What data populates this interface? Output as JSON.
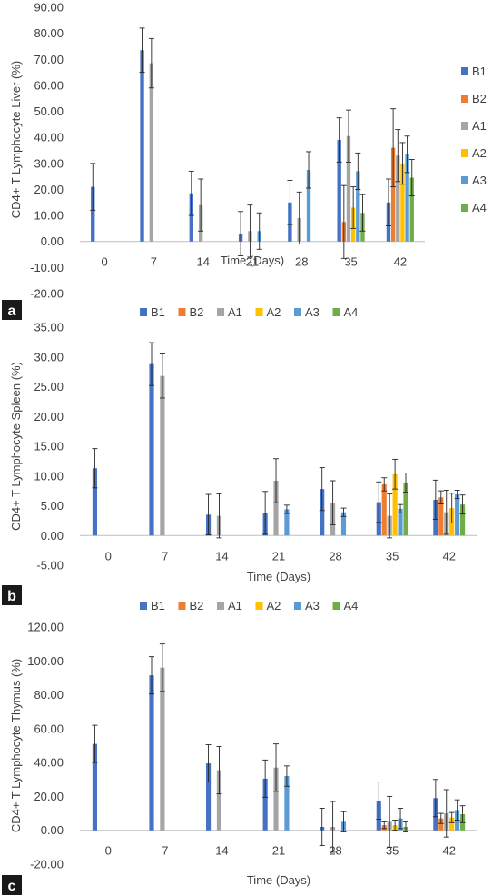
{
  "colors": {
    "B1": "#4472C4",
    "B2": "#ED7D31",
    "A1": "#A5A5A5",
    "A2": "#FFC000",
    "A3": "#5B9BD5",
    "A4": "#70AD47"
  },
  "chart_data": [
    {
      "type": "bar",
      "panel_label": "a",
      "title": "",
      "xlabel": "Time (Days)",
      "ylabel": "CD4+ T Lymphocyte Liver (%)",
      "ylim": [
        -20,
        90
      ],
      "ytick_step": 10,
      "ytick_labels": [
        "-20.00",
        "-10.00",
        "0.00",
        "10.00",
        "20.00",
        "30.00",
        "40.00",
        "50.00",
        "60.00",
        "70.00",
        "80.00",
        "90.00"
      ],
      "categories": [
        "0",
        "7",
        "14",
        "21",
        "28",
        "35",
        "42"
      ],
      "legend_position": "right",
      "series": [
        {
          "name": "B1",
          "values": [
            21,
            73.5,
            18.5,
            3,
            15,
            39,
            15
          ],
          "errors": [
            9,
            8.5,
            8.5,
            8.5,
            8.5,
            8.5,
            9
          ]
        },
        {
          "name": "B2",
          "values": [
            null,
            null,
            null,
            null,
            null,
            7.5,
            36
          ],
          "errors": [
            0,
            0,
            0,
            0,
            0,
            14,
            15
          ]
        },
        {
          "name": "A1",
          "values": [
            null,
            68.5,
            14,
            4,
            9,
            40.5,
            33
          ],
          "errors": [
            0,
            9.5,
            10,
            10,
            10,
            10,
            10
          ]
        },
        {
          "name": "A2",
          "values": [
            null,
            null,
            null,
            null,
            null,
            13,
            30
          ],
          "errors": [
            0,
            0,
            0,
            0,
            0,
            8,
            8
          ]
        },
        {
          "name": "A3",
          "values": [
            null,
            null,
            null,
            4,
            27.5,
            27,
            33.5
          ],
          "errors": [
            0,
            0,
            0,
            7,
            7,
            7,
            7
          ]
        },
        {
          "name": "A4",
          "values": [
            null,
            null,
            null,
            null,
            null,
            11,
            24.5
          ],
          "errors": [
            0,
            0,
            0,
            0,
            0,
            7,
            7
          ]
        }
      ]
    },
    {
      "type": "bar",
      "panel_label": "b",
      "title": "",
      "xlabel": "Time (Days)",
      "ylabel": "CD4+ T Lymphocyte Spleen (%)",
      "ylim": [
        -5,
        35
      ],
      "ytick_step": 5,
      "ytick_labels": [
        "-5.00",
        "0.00",
        "5.00",
        "10.00",
        "15.00",
        "20.00",
        "25.00",
        "30.00",
        "35.00"
      ],
      "categories": [
        "0",
        "7",
        "14",
        "21",
        "28",
        "35",
        "42"
      ],
      "legend_position": "top",
      "series": [
        {
          "name": "B1",
          "values": [
            11.3,
            28.8,
            3.5,
            3.8,
            7.8,
            5.6,
            6.0
          ],
          "errors": [
            3.3,
            3.6,
            3.4,
            3.6,
            3.6,
            3.4,
            3.3
          ]
        },
        {
          "name": "B2",
          "values": [
            null,
            null,
            null,
            null,
            null,
            8.6,
            6.4
          ],
          "errors": [
            0,
            0,
            0,
            0,
            0,
            1.1,
            1.1
          ]
        },
        {
          "name": "A1",
          "values": [
            null,
            26.8,
            3.3,
            9.2,
            5.5,
            3.3,
            3.9
          ],
          "errors": [
            0,
            3.7,
            3.7,
            3.7,
            3.7,
            3.7,
            3.7
          ]
        },
        {
          "name": "A2",
          "values": [
            null,
            null,
            null,
            null,
            null,
            10.3,
            4.6
          ],
          "errors": [
            0,
            0,
            0,
            0,
            0,
            2.5,
            2.5
          ]
        },
        {
          "name": "A3",
          "values": [
            null,
            null,
            null,
            4.4,
            3.9,
            4.5,
            6.9
          ],
          "errors": [
            0,
            0,
            0,
            0.7,
            0.7,
            0.7,
            0.7
          ]
        },
        {
          "name": "A4",
          "values": [
            null,
            null,
            null,
            null,
            null,
            8.9,
            5.2
          ],
          "errors": [
            0,
            0,
            0,
            0,
            0,
            1.6,
            1.6
          ]
        }
      ]
    },
    {
      "type": "bar",
      "panel_label": "c",
      "title": "",
      "xlabel": "Time (Days)",
      "ylabel": "CD4+ T Lymphocyte Thymus (%)",
      "ylim": [
        -20,
        120
      ],
      "ytick_step": 20,
      "ytick_labels": [
        "-20.00",
        "0.00",
        "20.00",
        "40.00",
        "60.00",
        "80.00",
        "100.00",
        "120.00"
      ],
      "categories": [
        "0",
        "7",
        "14",
        "21",
        "28",
        "35",
        "42"
      ],
      "legend_position": "top",
      "series": [
        {
          "name": "B1",
          "values": [
            51,
            91.5,
            39.5,
            30.5,
            2,
            17.5,
            19
          ],
          "errors": [
            11,
            11,
            11,
            11,
            11,
            11,
            11
          ]
        },
        {
          "name": "B2",
          "values": [
            null,
            null,
            null,
            null,
            null,
            3,
            7
          ],
          "errors": [
            0,
            0,
            0,
            0,
            0,
            2,
            3
          ]
        },
        {
          "name": "A1",
          "values": [
            null,
            96,
            35.5,
            37,
            2,
            5,
            10
          ],
          "errors": [
            0,
            14,
            14,
            14,
            15,
            15,
            14
          ]
        },
        {
          "name": "A2",
          "values": [
            null,
            null,
            null,
            null,
            null,
            3,
            7.5
          ],
          "errors": [
            0,
            0,
            0,
            0,
            0,
            3,
            3
          ]
        },
        {
          "name": "A3",
          "values": [
            null,
            null,
            null,
            32,
            5,
            7,
            12
          ],
          "errors": [
            0,
            0,
            0,
            6,
            6,
            6,
            6
          ]
        },
        {
          "name": "A4",
          "values": [
            null,
            null,
            null,
            null,
            null,
            2,
            9.5
          ],
          "errors": [
            0,
            0,
            0,
            0,
            0,
            3,
            5
          ]
        }
      ]
    }
  ]
}
